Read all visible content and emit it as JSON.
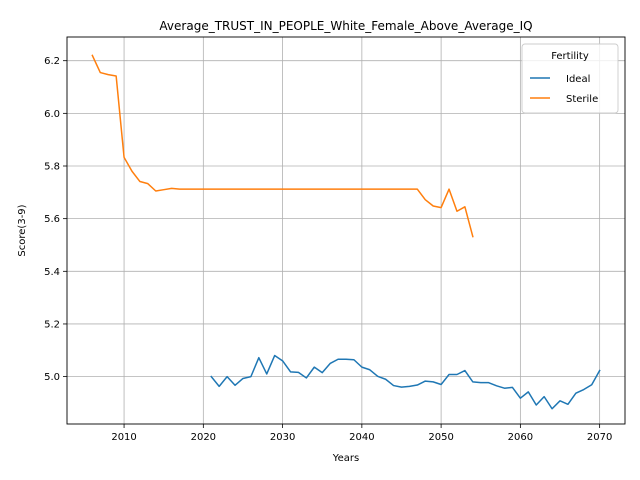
{
  "chart_data": {
    "type": "line",
    "title": "Average_TRUST_IN_PEOPLE_White_Female_Above_Average_IQ",
    "xlabel": "Years",
    "ylabel": "Score(3-9)",
    "xlim": [
      2002.8,
      2073.2
    ],
    "ylim": [
      4.82,
      6.29
    ],
    "xticks": [
      2010,
      2020,
      2030,
      2040,
      2050,
      2060,
      2070
    ],
    "yticks": [
      5.0,
      5.2,
      5.4,
      5.6,
      5.8,
      6.0,
      6.2
    ],
    "ytick_labels": [
      "5.0",
      "5.2",
      "5.4",
      "5.6",
      "5.8",
      "6.0",
      "6.2"
    ],
    "grid": true,
    "legend": {
      "title": "Fertility",
      "placement": "top-right"
    },
    "series": [
      {
        "name": "Ideal",
        "color": "#1f77b4",
        "x": [
          2021,
          2022,
          2023,
          2024,
          2025,
          2026,
          2027,
          2028,
          2029,
          2030,
          2031,
          2032,
          2033,
          2034,
          2035,
          2036,
          2037,
          2038,
          2039,
          2040,
          2041,
          2042,
          2043,
          2044,
          2045,
          2046,
          2047,
          2048,
          2049,
          2050,
          2051,
          2052,
          2053,
          2054,
          2055,
          2056,
          2057,
          2058,
          2059,
          2060,
          2061,
          2062,
          2063,
          2064,
          2065,
          2066,
          2067,
          2068,
          2069,
          2070
        ],
        "y": [
          5.0,
          4.963,
          5.0,
          4.967,
          4.993,
          5.0,
          5.072,
          5.01,
          5.08,
          5.06,
          5.018,
          5.016,
          4.995,
          5.036,
          5.015,
          5.05,
          5.066,
          5.066,
          5.064,
          5.036,
          5.026,
          5.001,
          4.99,
          4.966,
          4.96,
          4.963,
          4.968,
          4.983,
          4.98,
          4.97,
          5.008,
          5.008,
          5.023,
          4.98,
          4.977,
          4.977,
          4.965,
          4.956,
          4.959,
          4.918,
          4.942,
          4.892,
          4.924,
          4.878,
          4.908,
          4.895,
          4.937,
          4.951,
          4.969,
          5.023
        ]
      },
      {
        "name": "Sterile",
        "color": "#ff7f0e",
        "x": [
          2006,
          2007,
          2008,
          2009,
          2010,
          2011,
          2012,
          2013,
          2014,
          2015,
          2016,
          2017,
          2018,
          2019,
          2020,
          2021,
          2022,
          2023,
          2024,
          2025,
          2026,
          2027,
          2028,
          2029,
          2030,
          2031,
          2032,
          2033,
          2034,
          2035,
          2036,
          2037,
          2038,
          2039,
          2040,
          2041,
          2042,
          2043,
          2044,
          2045,
          2046,
          2047,
          2048,
          2049,
          2050,
          2051,
          2052,
          2053,
          2054
        ],
        "y": [
          6.22,
          6.155,
          6.147,
          6.142,
          5.833,
          5.78,
          5.741,
          5.733,
          5.705,
          5.71,
          5.715,
          5.712,
          5.712,
          5.712,
          5.712,
          5.712,
          5.712,
          5.712,
          5.712,
          5.712,
          5.712,
          5.712,
          5.712,
          5.712,
          5.712,
          5.712,
          5.712,
          5.712,
          5.712,
          5.712,
          5.712,
          5.712,
          5.712,
          5.712,
          5.712,
          5.712,
          5.712,
          5.712,
          5.712,
          5.712,
          5.712,
          5.712,
          5.672,
          5.648,
          5.642,
          5.712,
          5.628,
          5.645,
          5.532
        ]
      }
    ]
  }
}
